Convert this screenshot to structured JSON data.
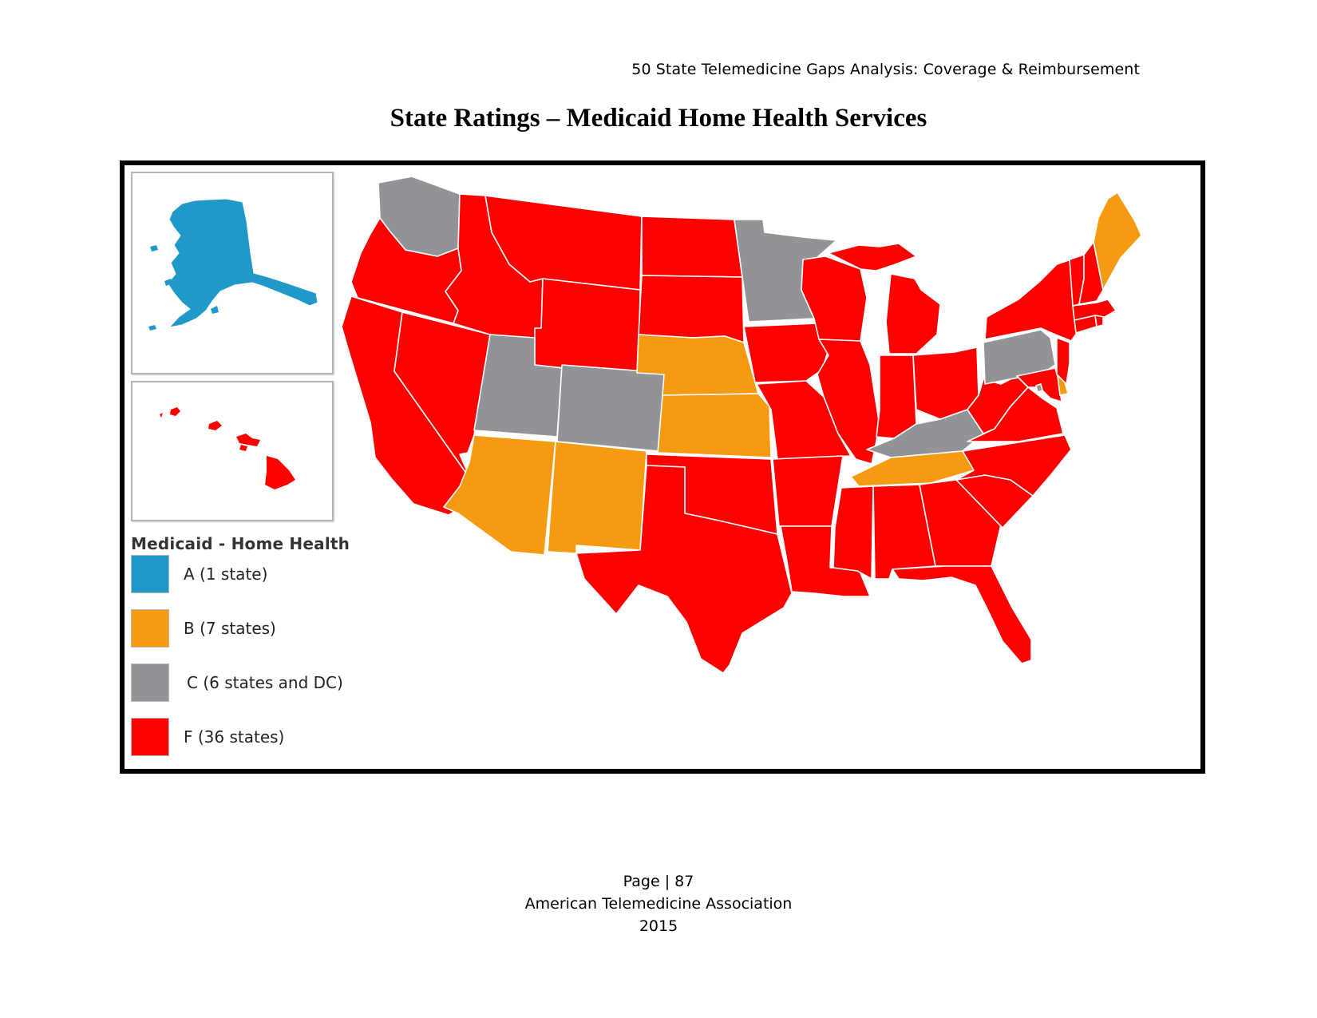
{
  "header": {
    "running_title": "50 State Telemedicine Gaps Analysis:  Coverage & Reimbursement"
  },
  "title": "State Ratings – Medicaid Home Health Services",
  "colors": {
    "A": "#2199c8",
    "B": "#f49b12",
    "C": "#919396",
    "F": "#fd0000"
  },
  "legend": {
    "title": "Medicaid - Home Health",
    "items": [
      {
        "grade": "A",
        "label": "A (1 state)"
      },
      {
        "grade": "B",
        "label": "B (7 states)"
      },
      {
        "grade": "C",
        "label": "C (6 states and DC)"
      },
      {
        "grade": "F",
        "label": "F (36 states)"
      }
    ]
  },
  "map": {
    "ratings": {
      "A": [
        "AK"
      ],
      "B": [
        "AZ",
        "NM",
        "NE",
        "KS",
        "TN",
        "ME",
        "DE"
      ],
      "C": [
        "WA",
        "UT",
        "CO",
        "MN",
        "KY",
        "PA",
        "DC"
      ],
      "F": [
        "OR",
        "CA",
        "NV",
        "ID",
        "MT",
        "WY",
        "ND",
        "SD",
        "OK",
        "TX",
        "IA",
        "MO",
        "AR",
        "LA",
        "WI",
        "IL",
        "MI",
        "IN",
        "OH",
        "MS",
        "AL",
        "GA",
        "FL",
        "SC",
        "NC",
        "VA",
        "WV",
        "MD",
        "NJ",
        "NY",
        "CT",
        "RI",
        "MA",
        "VT",
        "NH",
        "HI"
      ]
    }
  },
  "footer": {
    "page": "Page | 87",
    "org": "American Telemedicine Association",
    "year": "2015"
  }
}
